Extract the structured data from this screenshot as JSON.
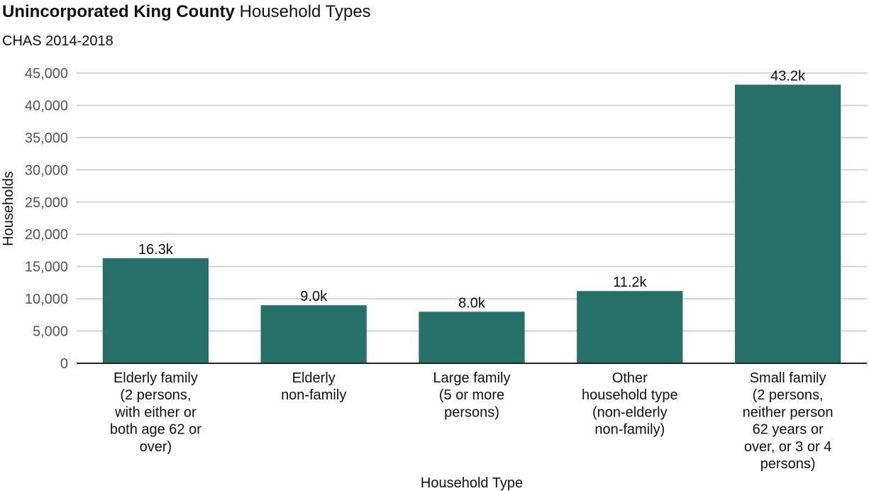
{
  "title": {
    "bold": "Unincorporated King County",
    "rest": " Household Types"
  },
  "subtitle": "CHAS 2014-2018",
  "chart_data": {
    "type": "bar",
    "xlabel": "Household Type",
    "ylabel": "Households",
    "ylim": [
      0,
      45000
    ],
    "yticks": [
      0,
      5000,
      10000,
      15000,
      20000,
      25000,
      30000,
      35000,
      40000,
      45000
    ],
    "ytick_labels": [
      "0",
      "5,000",
      "10,000",
      "15,000",
      "20,000",
      "25,000",
      "30,000",
      "35,000",
      "40,000",
      "45,000"
    ],
    "grid": true,
    "bar_color": "#277069",
    "categories": [
      [
        "Elderly family",
        "(2 persons,",
        "with either or",
        "both age 62 or",
        "over)"
      ],
      [
        "Elderly",
        "non-family"
      ],
      [
        "Large family",
        "(5 or more",
        "persons)"
      ],
      [
        "Other",
        "household type",
        "(non-elderly",
        "non-family)"
      ],
      [
        "Small family",
        "(2 persons,",
        "neither person",
        "62 years or",
        "over, or 3 or 4",
        "persons)"
      ]
    ],
    "values": [
      16300,
      9000,
      8000,
      11200,
      43200
    ],
    "data_labels": [
      "16.3k",
      "9.0k",
      "8.0k",
      "11.2k",
      "43.2k"
    ]
  }
}
